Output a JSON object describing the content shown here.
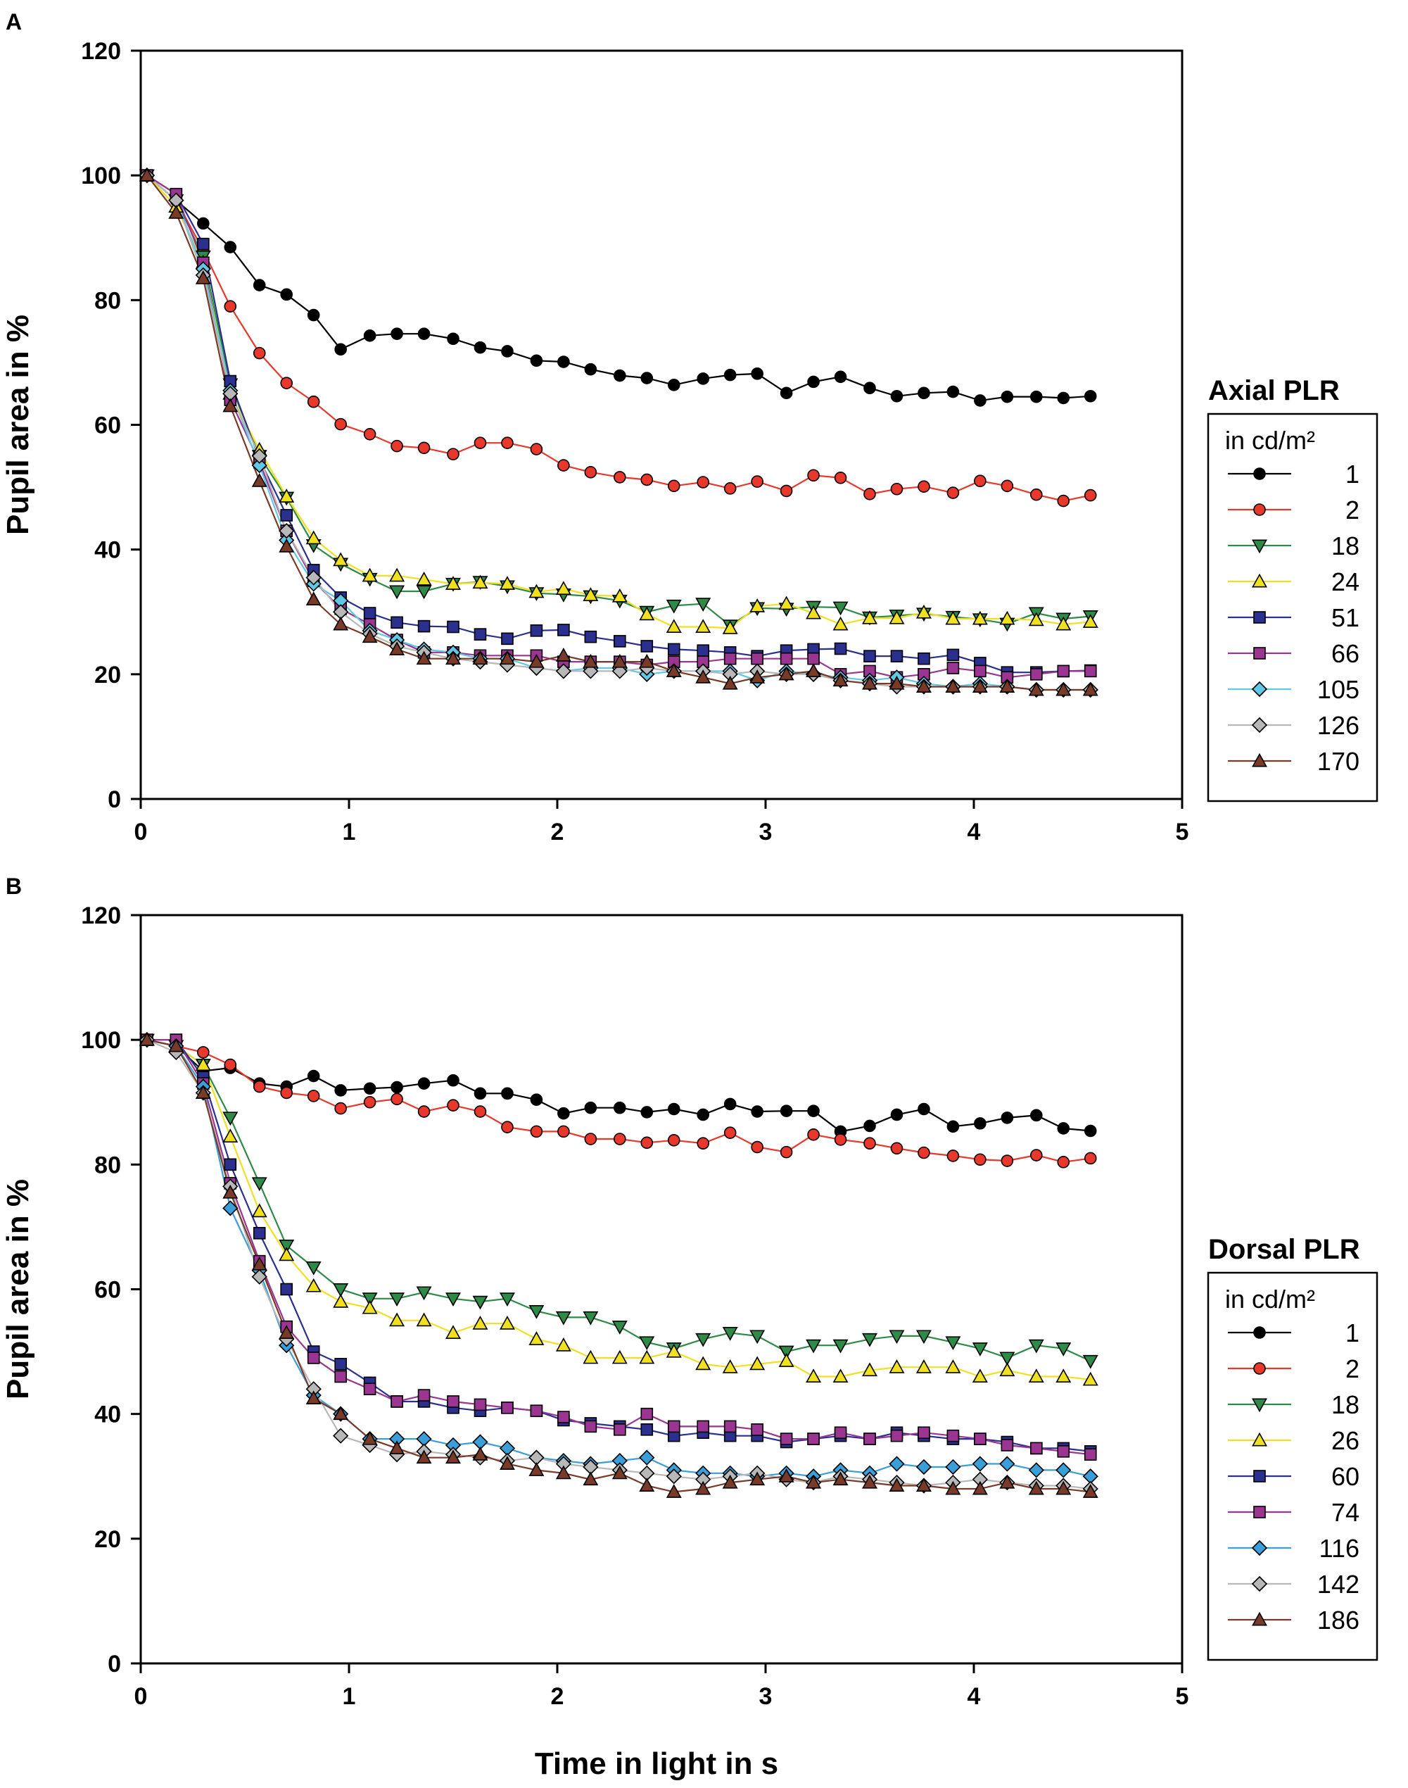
{
  "x_axis_title": "Time in light in s",
  "chart_data": [
    {
      "type": "line",
      "panel_label": "A",
      "title": "Axial PLR",
      "legend_subtitle": "in cd/m²",
      "xlabel": "Time in light in s",
      "ylabel": "Pupil area in %",
      "xlim": [
        0,
        5
      ],
      "ylim": [
        0,
        120
      ],
      "xticks": [
        "0",
        "1",
        "2",
        "3",
        "4",
        "5"
      ],
      "yticks": [
        "0",
        "20",
        "40",
        "60",
        "80",
        "100",
        "120"
      ],
      "legend_position": "right",
      "x": [
        0.03,
        0.17,
        0.3,
        0.43,
        0.57,
        0.7,
        0.83,
        0.96,
        1.1,
        1.23,
        1.36,
        1.5,
        1.63,
        1.76,
        1.9,
        2.03,
        2.16,
        2.3,
        2.43,
        2.56,
        2.7,
        2.83,
        2.96,
        3.1,
        3.23,
        3.36,
        3.5,
        3.63,
        3.76,
        3.9,
        4.03,
        4.16,
        4.3,
        4.43,
        4.56
      ],
      "series": [
        {
          "name": "1",
          "color": "#000000",
          "marker": "circle",
          "values": [
            100,
            96,
            92.3,
            88.5,
            82.4,
            80.9,
            77.6,
            72.1,
            74.3,
            74.6,
            74.6,
            73.8,
            72.4,
            71.8,
            70.3,
            70.1,
            68.9,
            67.9,
            67.5,
            66.4,
            67.4,
            68,
            68.2,
            65.1,
            66.9,
            67.7,
            65.9,
            64.6,
            65.1,
            65.3,
            63.9,
            64.5,
            64.5,
            64.3,
            64.6
          ]
        },
        {
          "name": "2",
          "color": "#e8382b",
          "marker": "circle",
          "values": [
            100,
            96,
            88,
            79,
            71.5,
            66.7,
            63.7,
            60.1,
            58.5,
            56.6,
            56.3,
            55.3,
            57.1,
            57.1,
            56.1,
            53.5,
            52.4,
            51.6,
            51.2,
            50.2,
            50.8,
            49.8,
            50.9,
            49.4,
            51.9,
            51.5,
            48.9,
            49.7,
            50.1,
            49.1,
            51,
            50.2,
            48.8,
            47.8,
            48.7
          ]
        },
        {
          "name": "18",
          "color": "#2e8b47",
          "marker": "triangle-down",
          "values": [
            100,
            96,
            87,
            66.5,
            55,
            48.3,
            40.7,
            37.7,
            35.3,
            33.3,
            33.3,
            34.5,
            34.8,
            34.1,
            33,
            32.8,
            32.5,
            31.8,
            30,
            31,
            31.3,
            27.8,
            30.6,
            30.5,
            30.8,
            30.7,
            29.1,
            29.4,
            29.7,
            29.2,
            28.8,
            28.1,
            29.8,
            28.9,
            29.3
          ]
        },
        {
          "name": "24",
          "color": "#f0e020",
          "marker": "triangle-up",
          "values": [
            100,
            95,
            86,
            65,
            56,
            48.5,
            41.8,
            38.3,
            35.8,
            35.8,
            35.2,
            34.5,
            34.7,
            34.5,
            33.2,
            33.7,
            32.7,
            32.5,
            29.6,
            27.6,
            27.6,
            27.4,
            30.9,
            31.3,
            29.8,
            28,
            29,
            29,
            29.9,
            28.9,
            28.9,
            28.9,
            28.7,
            28,
            28.4
          ]
        },
        {
          "name": "51",
          "color": "#2b2f8e",
          "marker": "square",
          "values": [
            100,
            97,
            89,
            67,
            54.5,
            45.5,
            36.7,
            32.3,
            29.8,
            28.3,
            27.7,
            27.6,
            26.4,
            25.7,
            27,
            27.1,
            26,
            25.3,
            24.5,
            24,
            23.8,
            23.5,
            22.9,
            23.8,
            24,
            24.1,
            22.9,
            22.9,
            22.5,
            23.1,
            21.8,
            20.3,
            20.3,
            20.5,
            20.6
          ]
        },
        {
          "name": "66",
          "color": "#9a3592",
          "marker": "square",
          "values": [
            100,
            97,
            86,
            64,
            54,
            43,
            35,
            30.5,
            28,
            25.5,
            23.5,
            23.5,
            23,
            23,
            23,
            22,
            22,
            22,
            21.5,
            22,
            22,
            22.5,
            22.5,
            22.5,
            22.5,
            20,
            20.5,
            19.5,
            20,
            21,
            20.5,
            19.5,
            20,
            20.5,
            20.5
          ]
        },
        {
          "name": "105",
          "color": "#60c8e4",
          "marker": "diamond",
          "values": [
            100,
            96,
            85,
            65.5,
            53.5,
            41.5,
            34.5,
            31.8,
            27,
            25.5,
            24,
            23.5,
            22.5,
            22.5,
            21,
            20.5,
            21,
            21,
            20,
            20.5,
            20.5,
            20.5,
            19,
            20.5,
            20,
            19.5,
            19,
            19.5,
            18.5,
            18,
            18.5,
            18,
            17.5,
            17.5,
            17.5
          ]
        },
        {
          "name": "126",
          "color": "#b8b8b8",
          "marker": "diamond",
          "values": [
            100,
            96,
            84,
            65,
            55,
            43,
            35.5,
            30,
            26.5,
            24.5,
            23.5,
            22.5,
            22,
            21.5,
            21,
            20.5,
            20.5,
            20.5,
            21,
            20.5,
            20.5,
            20,
            20.5,
            20,
            20,
            19,
            18.5,
            18,
            18,
            18,
            18,
            18,
            17.5,
            17.5,
            17.5
          ]
        },
        {
          "name": "170",
          "color": "#7a3a28",
          "marker": "triangle-up",
          "values": [
            100,
            94,
            83.5,
            63,
            51,
            40.5,
            32,
            28,
            26,
            24,
            22.5,
            22.5,
            22.5,
            22.5,
            22,
            23,
            22,
            22,
            22,
            20.5,
            19.5,
            18.5,
            19.5,
            20,
            20.5,
            19,
            18.5,
            18.5,
            18,
            18,
            18,
            18,
            17.5,
            17.5,
            17.5
          ]
        }
      ]
    },
    {
      "type": "line",
      "panel_label": "B",
      "title": "Dorsal PLR",
      "legend_subtitle": "in cd/m²",
      "xlabel": "Time in light in s",
      "ylabel": "Pupil area in %",
      "xlim": [
        0,
        5
      ],
      "ylim": [
        0,
        120
      ],
      "xticks": [
        "0",
        "1",
        "2",
        "3",
        "4",
        "5"
      ],
      "yticks": [
        "0",
        "20",
        "40",
        "60",
        "80",
        "100",
        "120"
      ],
      "legend_position": "right",
      "x": [
        0.03,
        0.17,
        0.3,
        0.43,
        0.57,
        0.7,
        0.83,
        0.96,
        1.1,
        1.23,
        1.36,
        1.5,
        1.63,
        1.76,
        1.9,
        2.03,
        2.16,
        2.3,
        2.43,
        2.56,
        2.7,
        2.83,
        2.96,
        3.1,
        3.23,
        3.36,
        3.5,
        3.63,
        3.76,
        3.9,
        4.03,
        4.16,
        4.3,
        4.43,
        4.56
      ],
      "series": [
        {
          "name": "1",
          "color": "#000000",
          "marker": "circle",
          "values": [
            100,
            99,
            95,
            95.5,
            93,
            92.5,
            94.2,
            91.9,
            92.2,
            92.4,
            93,
            93.5,
            91.4,
            91.4,
            90.4,
            88.2,
            89.1,
            89.1,
            88.4,
            88.9,
            88,
            89.7,
            88.5,
            88.6,
            88.6,
            85.3,
            86.2,
            88,
            88.9,
            86.1,
            86.6,
            87.5,
            87.9,
            85.8,
            85.4
          ]
        },
        {
          "name": "2",
          "color": "#e8382b",
          "marker": "circle",
          "values": [
            100,
            99,
            98,
            96,
            92.5,
            91.5,
            91,
            89,
            90,
            90.5,
            88.5,
            89.5,
            88.5,
            86,
            85.3,
            85.3,
            84.1,
            84.1,
            83.5,
            83.9,
            83.4,
            85.1,
            82.8,
            82,
            84.8,
            84,
            83.4,
            82.6,
            81.9,
            81.4,
            80.8,
            80.6,
            81.5,
            80.4,
            81
          ]
        },
        {
          "name": "18",
          "color": "#2e8b47",
          "marker": "triangle-down",
          "values": [
            100,
            99,
            96,
            87.5,
            77,
            67,
            63.5,
            60,
            58.5,
            58.5,
            59.5,
            58.5,
            58,
            58.5,
            56.5,
            55.5,
            55.5,
            54,
            51.5,
            50.5,
            52,
            53,
            52.5,
            50,
            51,
            51,
            52,
            52.5,
            52.5,
            51.5,
            50.5,
            49,
            51,
            50.5,
            48.5
          ]
        },
        {
          "name": "26",
          "color": "#f0e020",
          "marker": "triangle-up",
          "values": [
            100,
            99,
            96,
            84.5,
            72.5,
            65.5,
            60.5,
            58,
            57,
            55,
            55,
            53,
            54.5,
            54.5,
            52,
            51,
            49,
            49,
            49,
            50,
            48,
            47.5,
            48,
            48.5,
            46,
            46,
            47,
            47.5,
            47.5,
            47.5,
            46,
            47,
            46,
            46,
            45.5
          ]
        },
        {
          "name": "60",
          "color": "#2b2f8e",
          "marker": "square",
          "values": [
            100,
            100,
            94,
            80,
            69,
            60,
            50,
            48,
            45,
            42,
            42,
            41,
            40.5,
            41,
            40.5,
            39,
            38.5,
            38,
            37.5,
            36.5,
            37,
            36.5,
            36.5,
            35.5,
            36,
            36.5,
            36,
            37,
            36.5,
            36,
            36,
            35.5,
            34.5,
            34.5,
            34
          ]
        },
        {
          "name": "74",
          "color": "#9a3592",
          "marker": "square",
          "values": [
            100,
            100,
            93,
            77,
            64.5,
            54,
            49,
            46,
            44,
            42,
            43,
            42,
            41.5,
            41,
            40.5,
            39.5,
            38,
            37.5,
            40,
            38,
            38,
            38,
            37.5,
            36,
            36,
            37,
            36,
            36.5,
            37,
            36.5,
            36,
            35,
            34.5,
            34,
            33.5
          ]
        },
        {
          "name": "116",
          "color": "#3a9fd8",
          "marker": "diamond",
          "values": [
            100,
            99,
            92.5,
            73,
            63,
            51,
            43,
            40,
            36,
            36,
            36,
            35,
            35.5,
            34.5,
            33,
            32.5,
            32,
            32.5,
            33,
            31,
            30.5,
            30.5,
            30,
            30.5,
            30,
            31,
            30.5,
            32,
            31.5,
            31.5,
            32,
            32,
            31,
            31,
            30
          ]
        },
        {
          "name": "142",
          "color": "#b8b8b8",
          "marker": "diamond",
          "values": [
            100,
            98,
            91.5,
            76.5,
            62,
            52,
            44,
            36.5,
            35,
            33.5,
            34,
            33.5,
            33,
            32.5,
            33,
            32,
            31.5,
            31,
            30.5,
            30,
            29.5,
            30,
            30.5,
            29.5,
            29,
            30,
            29.5,
            29,
            28.5,
            29,
            29.5,
            29,
            28.5,
            28.5,
            28
          ]
        },
        {
          "name": "186",
          "color": "#7a3a28",
          "marker": "triangle-up",
          "values": [
            100,
            99,
            91.5,
            75.5,
            64,
            53,
            42.5,
            40,
            36,
            34.5,
            33,
            33,
            33.5,
            32,
            31,
            30.5,
            29.5,
            30.5,
            28.5,
            27.5,
            28,
            29,
            29.5,
            30,
            29,
            29.5,
            29,
            28.5,
            28.5,
            28,
            28,
            29,
            28,
            28,
            27.5
          ]
        }
      ]
    }
  ]
}
